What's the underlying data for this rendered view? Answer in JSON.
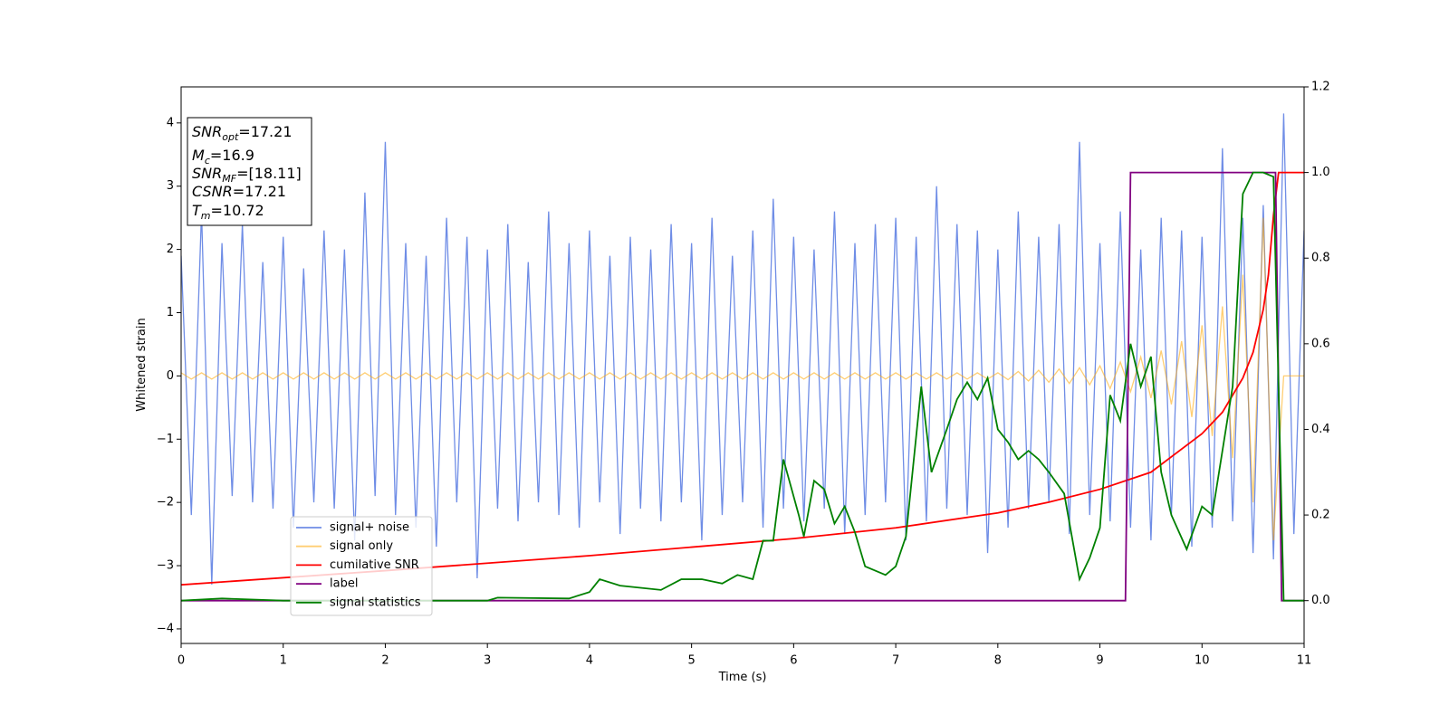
{
  "chart_data": {
    "type": "line",
    "xlabel": "Time (s)",
    "ylabel": "Whitened strain",
    "xlim": [
      0,
      11
    ],
    "ylim": [
      -4.23,
      4.57
    ],
    "y2lim": [
      -0.1,
      1.2
    ],
    "xticks": [
      0,
      1,
      2,
      3,
      4,
      5,
      6,
      7,
      8,
      9,
      10,
      11
    ],
    "yticks": [
      {
        "value": -4,
        "label": "−4"
      },
      {
        "value": -3,
        "label": "−3"
      },
      {
        "value": -2,
        "label": "−2"
      },
      {
        "value": -1,
        "label": "−1"
      },
      0,
      1,
      2,
      3,
      4
    ],
    "y2ticks": [
      {
        "value": 0,
        "label": "0.0"
      },
      0.2,
      0.4,
      0.6,
      0.8,
      {
        "value": 1,
        "label": "1.0"
      },
      1.2
    ],
    "annotations": [
      {
        "name": "SNR",
        "sub": "opt",
        "rest": "=17.21"
      },
      {
        "name": "M",
        "sub": "c",
        "rest": "=16.9"
      },
      {
        "name": "SNR",
        "sub": "MF",
        "rest": "=[18.11]"
      },
      {
        "name": "CSNR",
        "rest": "=17.21"
      },
      {
        "name": "T",
        "sub": "m",
        "rest": "=10.72"
      }
    ],
    "series": [
      {
        "name": "signal+ noise",
        "color": "#6f8de6",
        "x": [
          0,
          0.1,
          0.2,
          0.3,
          0.4,
          0.5,
          0.6,
          0.7,
          0.8,
          0.9,
          1,
          1.1,
          1.2,
          1.3,
          1.4,
          1.5,
          1.6,
          1.7,
          1.8,
          1.9,
          2,
          2.1,
          2.2,
          2.3,
          2.4,
          2.5,
          2.6,
          2.7,
          2.8,
          2.9,
          3,
          3.1,
          3.2,
          3.3,
          3.4,
          3.5,
          3.6,
          3.7,
          3.8,
          3.9,
          4,
          4.1,
          4.2,
          4.3,
          4.4,
          4.5,
          4.6,
          4.7,
          4.8,
          4.9,
          5,
          5.1,
          5.2,
          5.3,
          5.4,
          5.5,
          5.6,
          5.7,
          5.8,
          5.9,
          6,
          6.1,
          6.2,
          6.3,
          6.4,
          6.5,
          6.6,
          6.7,
          6.8,
          6.9,
          7,
          7.1,
          7.2,
          7.3,
          7.4,
          7.5,
          7.6,
          7.7,
          7.8,
          7.9,
          8,
          8.1,
          8.2,
          8.3,
          8.4,
          8.5,
          8.6,
          8.7,
          8.8,
          8.9,
          9,
          9.1,
          9.2,
          9.3,
          9.4,
          9.5,
          9.6,
          9.7,
          9.8,
          9.9,
          10,
          10.1,
          10.2,
          10.3,
          10.4,
          10.5,
          10.6,
          10.7,
          10.8,
          10.9,
          11
        ],
        "values": [
          1.9,
          -2.2,
          2.6,
          -3.3,
          2.1,
          -1.9,
          2.4,
          -2.0,
          1.8,
          -2.1,
          2.2,
          -2.4,
          1.7,
          -2.0,
          2.3,
          -2.1,
          2.0,
          -2.6,
          2.9,
          -1.9,
          3.7,
          -2.2,
          2.1,
          -2.4,
          1.9,
          -2.7,
          2.5,
          -2.0,
          2.2,
          -3.2,
          2.0,
          -2.1,
          2.4,
          -2.3,
          1.8,
          -2.0,
          2.6,
          -2.2,
          2.1,
          -2.4,
          2.3,
          -2.0,
          1.9,
          -2.5,
          2.2,
          -2.1,
          2.0,
          -2.3,
          2.4,
          -2.0,
          2.1,
          -2.6,
          2.5,
          -2.2,
          1.9,
          -2.0,
          2.3,
          -2.4,
          2.8,
          -2.1,
          2.2,
          -2.3,
          2.0,
          -2.1,
          2.6,
          -2.5,
          2.1,
          -2.2,
          2.4,
          -2.0,
          2.5,
          -2.6,
          2.2,
          -2.3,
          3.0,
          -2.1,
          2.4,
          -2.2,
          2.3,
          -2.8,
          2.0,
          -2.4,
          2.6,
          -2.1,
          2.2,
          -2.0,
          2.4,
          -2.5,
          3.7,
          -2.2,
          2.1,
          -2.3,
          2.6,
          -2.4,
          2.0,
          -2.6,
          2.5,
          -2.2,
          2.3,
          -2.7,
          2.2,
          -2.4,
          3.6,
          -2.3,
          2.5,
          -2.8,
          2.7,
          -2.9,
          4.15,
          -2.5,
          2.3
        ]
      },
      {
        "name": "signal only",
        "color": "#ffa500",
        "x": [
          0,
          0.1,
          0.2,
          0.3,
          0.4,
          0.5,
          0.6,
          0.7,
          0.8,
          0.9,
          1,
          1.1,
          1.2,
          1.3,
          1.4,
          1.5,
          1.6,
          1.7,
          1.8,
          1.9,
          2,
          2.1,
          2.2,
          2.3,
          2.4,
          2.5,
          2.6,
          2.7,
          2.8,
          2.9,
          3,
          3.1,
          3.2,
          3.3,
          3.4,
          3.5,
          3.6,
          3.7,
          3.8,
          3.9,
          4,
          4.1,
          4.2,
          4.3,
          4.4,
          4.5,
          4.6,
          4.7,
          4.8,
          4.9,
          5,
          5.1,
          5.2,
          5.3,
          5.4,
          5.5,
          5.6,
          5.7,
          5.8,
          5.9,
          6,
          6.1,
          6.2,
          6.3,
          6.4,
          6.5,
          6.6,
          6.7,
          6.8,
          6.9,
          7,
          7.1,
          7.2,
          7.3,
          7.4,
          7.5,
          7.6,
          7.7,
          7.8,
          7.9,
          8,
          8.1,
          8.2,
          8.3,
          8.4,
          8.5,
          8.6,
          8.7,
          8.8,
          8.9,
          9,
          9.1,
          9.2,
          9.3,
          9.4,
          9.5,
          9.6,
          9.7,
          9.8,
          9.9,
          10,
          10.1,
          10.2,
          10.3,
          10.4,
          10.5,
          10.6,
          10.7,
          10.8,
          10.9,
          11
        ],
        "values": [
          0.05,
          -0.05,
          0.05,
          -0.05,
          0.05,
          -0.05,
          0.05,
          -0.05,
          0.05,
          -0.05,
          0.05,
          -0.05,
          0.05,
          -0.05,
          0.05,
          -0.05,
          0.05,
          -0.05,
          0.05,
          -0.05,
          0.05,
          -0.05,
          0.05,
          -0.05,
          0.05,
          -0.05,
          0.05,
          -0.05,
          0.05,
          -0.05,
          0.05,
          -0.05,
          0.05,
          -0.05,
          0.05,
          -0.05,
          0.05,
          -0.05,
          0.05,
          -0.05,
          0.05,
          -0.05,
          0.05,
          -0.05,
          0.05,
          -0.05,
          0.05,
          -0.05,
          0.05,
          -0.05,
          0.05,
          -0.05,
          0.05,
          -0.05,
          0.05,
          -0.05,
          0.05,
          -0.05,
          0.05,
          -0.05,
          0.05,
          -0.05,
          0.05,
          -0.05,
          0.05,
          -0.05,
          0.05,
          -0.05,
          0.05,
          -0.05,
          0.05,
          -0.05,
          0.05,
          -0.05,
          0.05,
          -0.05,
          0.05,
          -0.05,
          0.05,
          -0.05,
          0.05,
          -0.06,
          0.07,
          -0.08,
          0.09,
          -0.1,
          0.11,
          -0.12,
          0.13,
          -0.14,
          0.16,
          -0.2,
          0.22,
          -0.25,
          0.3,
          -0.35,
          0.4,
          -0.45,
          0.55,
          -0.65,
          0.8,
          -0.95,
          1.1,
          -1.3,
          1.6,
          -2.0,
          2.5,
          -2.6,
          0,
          0,
          0
        ]
      },
      {
        "name": "cumilative SNR",
        "color": "#ff0000",
        "axis": "y2",
        "x": [
          0,
          2,
          4,
          5,
          6,
          7,
          8,
          8.5,
          9,
          9.5,
          10,
          10.2,
          10.4,
          10.5,
          10.6,
          10.65,
          10.7,
          10.75,
          11
        ],
        "values": [
          0.037,
          0.07,
          0.105,
          0.125,
          0.145,
          0.17,
          0.205,
          0.23,
          0.26,
          0.3,
          0.39,
          0.44,
          0.52,
          0.58,
          0.68,
          0.76,
          0.9,
          1,
          1
        ]
      },
      {
        "name": "label",
        "color": "#800080",
        "axis": "y2",
        "x": [
          0,
          9.25,
          9.3,
          10.72,
          10.78,
          11
        ],
        "values": [
          0,
          0,
          1,
          1,
          0,
          0
        ]
      },
      {
        "name": "signal statistics",
        "color": "#008000",
        "axis": "y2",
        "x": [
          0,
          0.4,
          1,
          3,
          3.1,
          3.8,
          4,
          4.1,
          4.3,
          4.5,
          4.7,
          4.9,
          5.1,
          5.3,
          5.45,
          5.6,
          5.7,
          5.8,
          5.9,
          6.05,
          6.1,
          6.2,
          6.3,
          6.4,
          6.5,
          6.6,
          6.7,
          6.9,
          7,
          7.1,
          7.25,
          7.35,
          7.5,
          7.6,
          7.7,
          7.8,
          7.9,
          8,
          8.1,
          8.2,
          8.3,
          8.4,
          8.5,
          8.65,
          8.8,
          8.9,
          9,
          9.1,
          9.2,
          9.3,
          9.4,
          9.5,
          9.6,
          9.7,
          9.85,
          10,
          10.1,
          10.3,
          10.4,
          10.5,
          10.6,
          10.7,
          10.8,
          11
        ],
        "values": [
          0,
          0.005,
          0,
          0,
          0.007,
          0.005,
          0.02,
          0.05,
          0.035,
          0.03,
          0.025,
          0.05,
          0.05,
          0.04,
          0.06,
          0.05,
          0.14,
          0.14,
          0.33,
          0.2,
          0.15,
          0.28,
          0.26,
          0.18,
          0.22,
          0.16,
          0.08,
          0.06,
          0.08,
          0.15,
          0.5,
          0.3,
          0.4,
          0.47,
          0.51,
          0.47,
          0.52,
          0.4,
          0.37,
          0.33,
          0.35,
          0.33,
          0.3,
          0.25,
          0.05,
          0.1,
          0.17,
          0.48,
          0.42,
          0.6,
          0.5,
          0.57,
          0.3,
          0.2,
          0.12,
          0.22,
          0.2,
          0.5,
          0.95,
          1,
          1,
          0.99,
          0,
          0
        ]
      }
    ]
  }
}
